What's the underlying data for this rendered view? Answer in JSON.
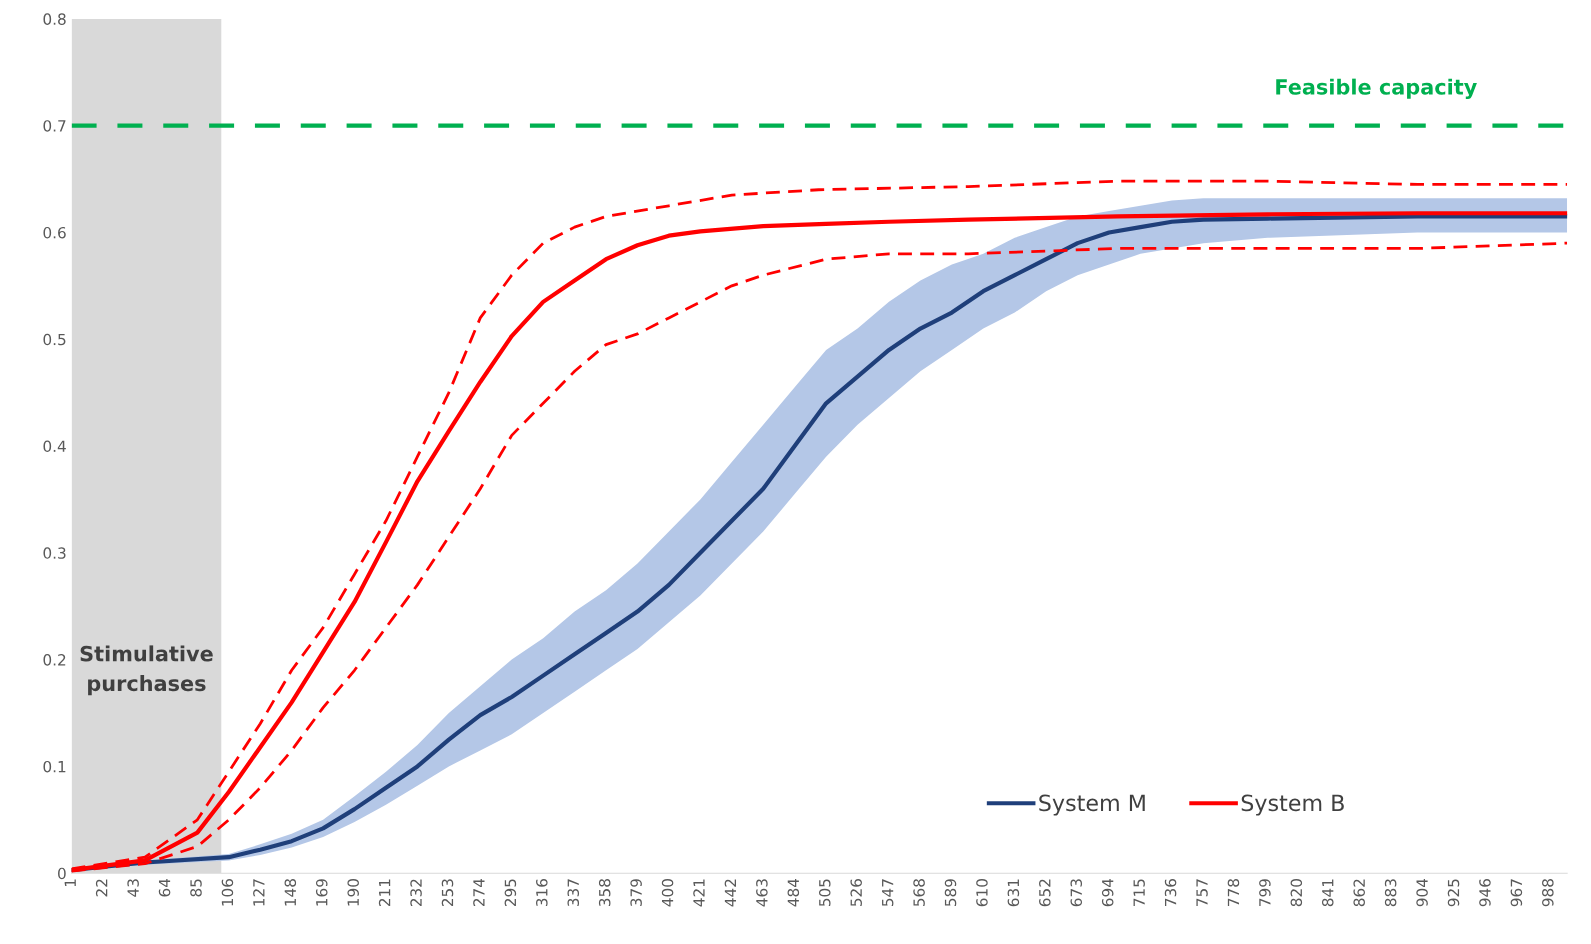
{
  "chart_data": {
    "type": "line",
    "xlim": [
      1,
      1000
    ],
    "ylim": [
      0,
      0.8
    ],
    "xticks": [
      1,
      22,
      43,
      64,
      85,
      106,
      127,
      148,
      169,
      190,
      211,
      232,
      253,
      274,
      295,
      316,
      337,
      358,
      379,
      400,
      421,
      442,
      463,
      484,
      505,
      526,
      547,
      568,
      589,
      610,
      631,
      652,
      673,
      694,
      715,
      736,
      757,
      778,
      799,
      820,
      841,
      862,
      883,
      904,
      925,
      946,
      967,
      988
    ],
    "yticks": [
      0,
      0.1,
      0.2,
      0.3,
      0.4,
      0.5,
      0.6,
      0.7,
      0.8
    ],
    "grid": false,
    "legend": "bottom right",
    "bands": [
      {
        "axis": "x",
        "from": 1,
        "to": 101,
        "label": "Stimulative purchases",
        "color": "#d9d9d9"
      }
    ],
    "ref_lines": [
      {
        "axis": "y",
        "value": 0.7,
        "label": "Feasible capacity",
        "color": "#00b050",
        "line_style": "dashed"
      }
    ],
    "series": [
      {
        "name": "System M",
        "color": "#1f3f7a",
        "line_style": "solid",
        "x": [
          1,
          50,
          106,
          127,
          148,
          169,
          190,
          211,
          232,
          253,
          274,
          295,
          316,
          337,
          358,
          379,
          400,
          421,
          442,
          463,
          484,
          505,
          526,
          547,
          568,
          589,
          610,
          631,
          652,
          673,
          694,
          715,
          736,
          757,
          800,
          900,
          1000
        ],
        "values": [
          0.003,
          0.01,
          0.015,
          0.022,
          0.03,
          0.042,
          0.06,
          0.08,
          0.1,
          0.125,
          0.148,
          0.165,
          0.185,
          0.205,
          0.225,
          0.245,
          0.27,
          0.3,
          0.33,
          0.36,
          0.4,
          0.44,
          0.465,
          0.49,
          0.51,
          0.525,
          0.545,
          0.56,
          0.575,
          0.59,
          0.6,
          0.605,
          0.61,
          0.612,
          0.613,
          0.615,
          0.615
        ],
        "lower": [
          0.002,
          0.008,
          0.012,
          0.017,
          0.024,
          0.034,
          0.048,
          0.064,
          0.082,
          0.1,
          0.115,
          0.13,
          0.15,
          0.17,
          0.19,
          0.21,
          0.235,
          0.26,
          0.29,
          0.32,
          0.355,
          0.39,
          0.42,
          0.445,
          0.47,
          0.49,
          0.51,
          0.525,
          0.545,
          0.56,
          0.57,
          0.58,
          0.585,
          0.59,
          0.595,
          0.6,
          0.6
        ],
        "upper": [
          0.004,
          0.012,
          0.018,
          0.027,
          0.037,
          0.05,
          0.072,
          0.095,
          0.12,
          0.15,
          0.175,
          0.2,
          0.22,
          0.245,
          0.265,
          0.29,
          0.32,
          0.35,
          0.385,
          0.42,
          0.455,
          0.49,
          0.51,
          0.535,
          0.555,
          0.57,
          0.58,
          0.595,
          0.605,
          0.615,
          0.62,
          0.625,
          0.63,
          0.632,
          0.632,
          0.632,
          0.632
        ]
      },
      {
        "name": "System B",
        "color": "#ff0000",
        "line_style": "solid",
        "x": [
          1,
          50,
          85,
          106,
          127,
          148,
          169,
          190,
          211,
          232,
          253,
          274,
          295,
          316,
          337,
          358,
          379,
          400,
          421,
          463,
          505,
          547,
          600,
          700,
          800,
          900,
          1000
        ],
        "values": [
          0.003,
          0.012,
          0.038,
          0.076,
          0.118,
          0.16,
          0.207,
          0.254,
          0.31,
          0.367,
          0.414,
          0.46,
          0.503,
          0.535,
          0.555,
          0.575,
          0.588,
          0.597,
          0.601,
          0.606,
          0.608,
          0.61,
          0.612,
          0.615,
          0.617,
          0.618,
          0.618
        ]
      },
      {
        "color": "#ff0000",
        "line_style": "dashed",
        "x": [
          1,
          50,
          85,
          106,
          127,
          148,
          169,
          190,
          211,
          232,
          253,
          274,
          295,
          316,
          337,
          358,
          400,
          442,
          500,
          600,
          700,
          800,
          900,
          1000
        ],
        "values": [
          0.004,
          0.015,
          0.05,
          0.095,
          0.14,
          0.19,
          0.23,
          0.28,
          0.33,
          0.39,
          0.45,
          0.52,
          0.56,
          0.59,
          0.605,
          0.615,
          0.625,
          0.635,
          0.64,
          0.643,
          0.648,
          0.648,
          0.645,
          0.645
        ]
      },
      {
        "color": "#ff0000",
        "line_style": "dashed",
        "x": [
          1,
          50,
          85,
          106,
          127,
          148,
          169,
          190,
          211,
          232,
          253,
          274,
          295,
          316,
          337,
          358,
          379,
          400,
          421,
          442,
          463,
          505,
          547,
          600,
          700,
          800,
          900,
          1000
        ],
        "values": [
          0.002,
          0.009,
          0.025,
          0.05,
          0.08,
          0.115,
          0.155,
          0.19,
          0.23,
          0.27,
          0.315,
          0.36,
          0.41,
          0.44,
          0.47,
          0.495,
          0.505,
          0.52,
          0.535,
          0.55,
          0.56,
          0.575,
          0.58,
          0.58,
          0.585,
          0.585,
          0.585,
          0.59
        ]
      }
    ]
  }
}
